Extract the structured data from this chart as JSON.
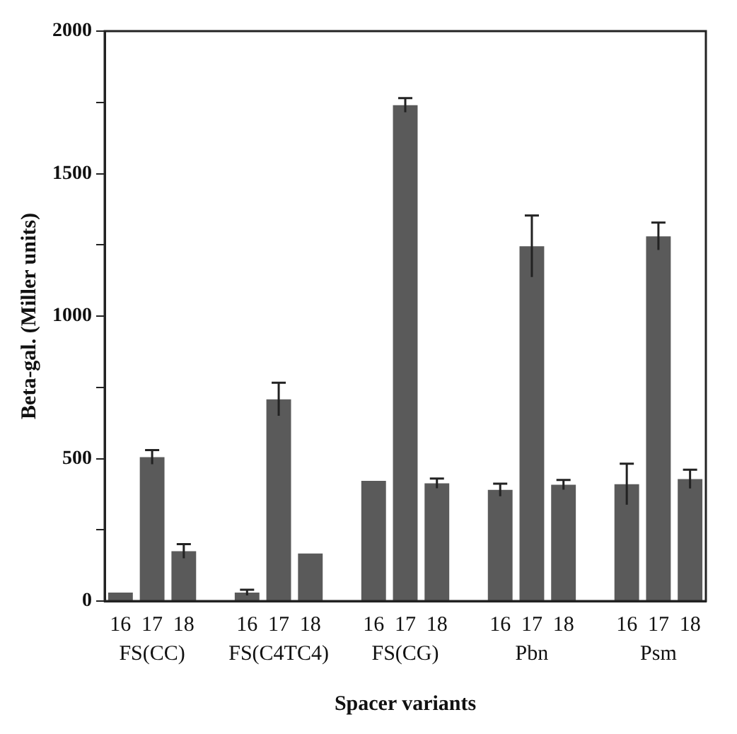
{
  "chart_data": {
    "type": "bar",
    "xlabel": "Spacer variants",
    "ylabel": "Beta-gal. (Miller units)",
    "categories": [
      "16",
      "17",
      "18",
      null,
      "16",
      "17",
      "18",
      null,
      "16",
      "17",
      "18",
      null,
      "16",
      "17",
      "18",
      null,
      "16",
      "17",
      "18"
    ],
    "values": [
      30,
      505,
      175,
      null,
      30,
      708,
      167,
      null,
      422,
      1740,
      413,
      null,
      390,
      1245,
      408,
      null,
      410,
      1280,
      428
    ],
    "errors": [
      null,
      25,
      25,
      null,
      10,
      58,
      null,
      null,
      null,
      25,
      17,
      null,
      22,
      108,
      17,
      null,
      72,
      48,
      33
    ],
    "color": "#5a5a5a",
    "annotations": [
      "FS(CC)",
      "FS(C4TC4)",
      "FS(CG)",
      "Pbn",
      "Psm"
    ],
    "ylim": [
      0,
      2000
    ],
    "yticks": [
      0,
      {
        "value": 250,
        "label": null
      },
      500,
      {
        "value": 750,
        "label": null
      },
      1000,
      {
        "value": 1250,
        "label": null
      },
      1500,
      {
        "value": 1750,
        "label": null
      },
      2000
    ],
    "grid": false
  }
}
